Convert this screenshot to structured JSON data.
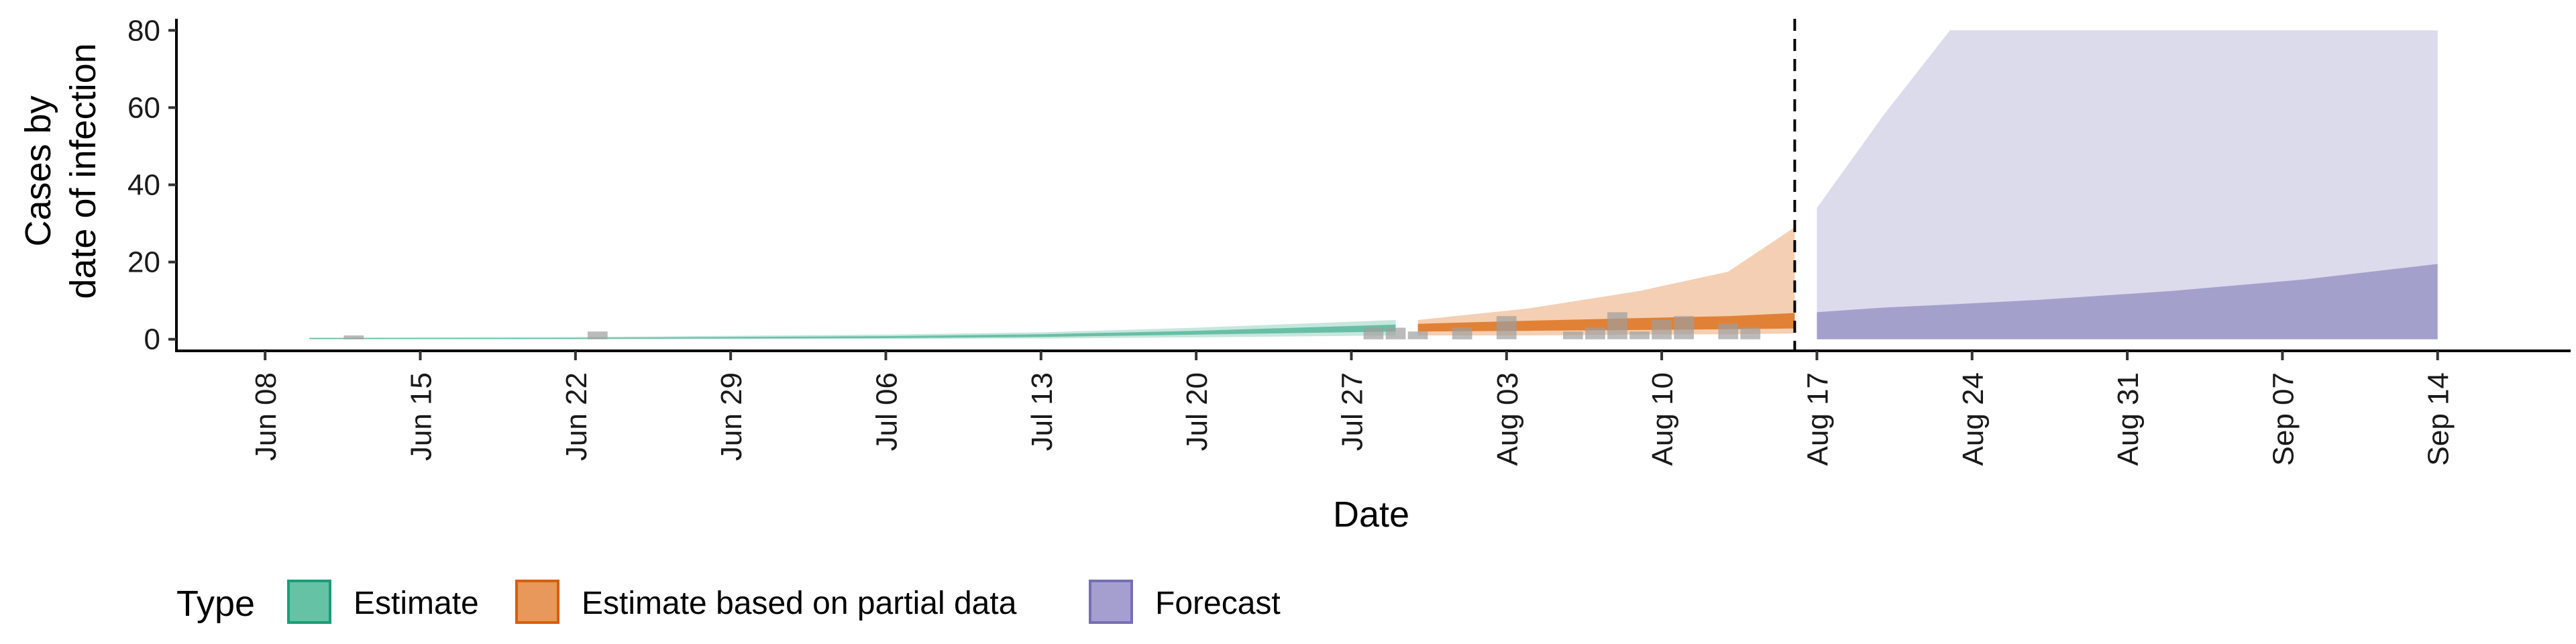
{
  "chart_data": {
    "type": "area",
    "xlabel": "Date",
    "ylabel": [
      "Cases by",
      "date of infection"
    ],
    "ylim": [
      -3,
      83
    ],
    "y_ticks": [
      0,
      20,
      40,
      60,
      80
    ],
    "x_ticks": [
      {
        "label": "Jun 08",
        "date": "2020-06-08"
      },
      {
        "label": "Jun 15",
        "date": "2020-06-15"
      },
      {
        "label": "Jun 22",
        "date": "2020-06-22"
      },
      {
        "label": "Jun 29",
        "date": "2020-06-29"
      },
      {
        "label": "Jul 06",
        "date": "2020-07-06"
      },
      {
        "label": "Jul 13",
        "date": "2020-07-13"
      },
      {
        "label": "Jul 20",
        "date": "2020-07-20"
      },
      {
        "label": "Jul 27",
        "date": "2020-07-27"
      },
      {
        "label": "Aug 03",
        "date": "2020-08-03"
      },
      {
        "label": "Aug 10",
        "date": "2020-08-10"
      },
      {
        "label": "Aug 17",
        "date": "2020-08-17"
      },
      {
        "label": "Aug 24",
        "date": "2020-08-24"
      },
      {
        "label": "Aug 31",
        "date": "2020-08-31"
      },
      {
        "label": "Sep 07",
        "date": "2020-09-07"
      },
      {
        "label": "Sep 14",
        "date": "2020-09-14"
      }
    ],
    "xlim": [
      "2020-06-04",
      "2020-09-20"
    ],
    "vline_date": "2020-08-16",
    "grid": false,
    "legend": {
      "title": "Type",
      "position": "bottom-left",
      "entries": [
        {
          "label": "Estimate",
          "fill": "#66c2a5",
          "stroke": "#1b9e77"
        },
        {
          "label": "Estimate based on partial data",
          "fill": "#e7985a",
          "stroke": "#d95f02"
        },
        {
          "label": "Forecast",
          "fill": "#a59fd0",
          "stroke": "#7570b3"
        }
      ]
    },
    "series": [
      {
        "type": "Estimate",
        "color": "#1b9e77",
        "outer_alpha": 0.25,
        "inner_alpha": 0.55,
        "points": [
          {
            "x": "2020-06-10",
            "lo90": 0,
            "hi90": 0.5,
            "lo50": 0.05,
            "hi50": 0.3
          },
          {
            "x": "2020-06-22",
            "lo90": 0,
            "hi90": 0.6,
            "lo50": 0.1,
            "hi50": 0.35
          },
          {
            "x": "2020-07-06",
            "lo90": 0.1,
            "hi90": 1.2,
            "lo50": 0.3,
            "hi50": 0.8
          },
          {
            "x": "2020-07-13",
            "lo90": 0.2,
            "hi90": 1.8,
            "lo50": 0.6,
            "hi50": 1.3
          },
          {
            "x": "2020-07-20",
            "lo90": 0.5,
            "hi90": 3.0,
            "lo50": 1.2,
            "hi50": 2.2
          },
          {
            "x": "2020-07-29",
            "lo90": 1.0,
            "hi90": 5.0,
            "lo50": 2.0,
            "hi50": 3.8
          }
        ]
      },
      {
        "type": "Estimate based on partial data",
        "color": "#d95f02",
        "outer_alpha": 0.3,
        "inner_alpha": 0.7,
        "points": [
          {
            "x": "2020-07-30",
            "lo90": 1.0,
            "hi90": 5.0,
            "lo50": 2.0,
            "hi50": 4.0
          },
          {
            "x": "2020-08-04",
            "lo90": 1.0,
            "hi90": 8.0,
            "lo50": 2.2,
            "hi50": 4.8
          },
          {
            "x": "2020-08-09",
            "lo90": 1.2,
            "hi90": 12.5,
            "lo50": 2.4,
            "hi50": 5.5
          },
          {
            "x": "2020-08-13",
            "lo90": 1.3,
            "hi90": 17.5,
            "lo50": 2.6,
            "hi50": 6.0
          },
          {
            "x": "2020-08-16",
            "lo90": 1.5,
            "hi90": 29.0,
            "lo50": 2.8,
            "hi50": 6.8
          }
        ]
      },
      {
        "type": "Forecast",
        "color": "#7570b3",
        "outer_alpha": 0.25,
        "inner_alpha": 0.55,
        "points": [
          {
            "x": "2020-08-17",
            "lo90": 0,
            "hi90": 34,
            "lo50": 0,
            "hi50": 7.0
          },
          {
            "x": "2020-08-20",
            "lo90": 0,
            "hi90": 58,
            "lo50": 0,
            "hi50": 8.2
          },
          {
            "x": "2020-08-23",
            "lo90": 0,
            "hi90": 80,
            "lo50": 0,
            "hi50": 9.0
          },
          {
            "x": "2020-08-27",
            "lo90": 0,
            "hi90": 80,
            "lo50": 0,
            "hi50": 10.2
          },
          {
            "x": "2020-09-02",
            "lo90": 0,
            "hi90": 80,
            "lo50": 0,
            "hi50": 12.5
          },
          {
            "x": "2020-09-08",
            "lo90": 0,
            "hi90": 80,
            "lo50": 0,
            "hi50": 15.5
          },
          {
            "x": "2020-09-14",
            "lo90": 0,
            "hi90": 80,
            "lo50": 0,
            "hi50": 19.5
          }
        ]
      }
    ],
    "reported_cases": [
      {
        "x": "2020-06-12",
        "y": 1
      },
      {
        "x": "2020-06-23",
        "y": 2
      },
      {
        "x": "2020-07-28",
        "y": 3
      },
      {
        "x": "2020-07-29",
        "y": 3
      },
      {
        "x": "2020-07-30",
        "y": 2
      },
      {
        "x": "2020-08-01",
        "y": 3
      },
      {
        "x": "2020-08-03",
        "y": 6
      },
      {
        "x": "2020-08-06",
        "y": 2
      },
      {
        "x": "2020-08-07",
        "y": 3
      },
      {
        "x": "2020-08-08",
        "y": 7
      },
      {
        "x": "2020-08-09",
        "y": 2
      },
      {
        "x": "2020-08-10",
        "y": 5
      },
      {
        "x": "2020-08-11",
        "y": 6
      },
      {
        "x": "2020-08-13",
        "y": 4
      },
      {
        "x": "2020-08-14",
        "y": 3
      }
    ]
  }
}
